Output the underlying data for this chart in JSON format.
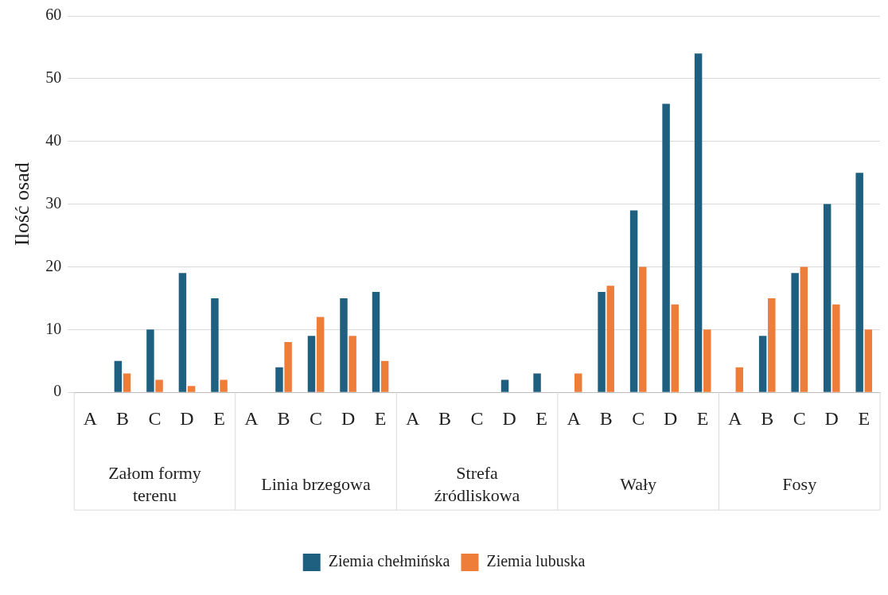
{
  "chart_data": {
    "type": "bar",
    "ylabel": "Ilość osad",
    "categories": [
      "A",
      "B",
      "C",
      "D",
      "E",
      "A",
      "B",
      "C",
      "D",
      "E",
      "A",
      "B",
      "C",
      "D",
      "E",
      "A",
      "B",
      "C",
      "D",
      "E",
      "A",
      "B",
      "C",
      "D",
      "E"
    ],
    "series": [
      {
        "name": "Ziemia chełmińska",
        "color": "#1f5f7f",
        "values": [
          0,
          5,
          10,
          19,
          15,
          0,
          4,
          9,
          15,
          16,
          0,
          0,
          0,
          2,
          3,
          0,
          16,
          29,
          46,
          54,
          0,
          9,
          19,
          30,
          35
        ]
      },
      {
        "name": "Ziemia lubuska",
        "color": "#ee7d3a",
        "values": [
          0,
          3,
          2,
          1,
          2,
          0,
          8,
          12,
          9,
          5,
          0,
          0,
          0,
          0,
          0,
          3,
          17,
          20,
          14,
          10,
          4,
          15,
          20,
          14,
          10
        ]
      }
    ],
    "annotations": [
      "Załom formy terenu",
      "Linia brzegowa",
      "Strefa źródliskowa",
      "Wały",
      "Fosy"
    ],
    "ylim": [
      0,
      60
    ],
    "yticks": [
      0,
      10,
      20,
      30,
      40,
      50,
      60
    ],
    "grid": "y",
    "legend": "bottom"
  }
}
